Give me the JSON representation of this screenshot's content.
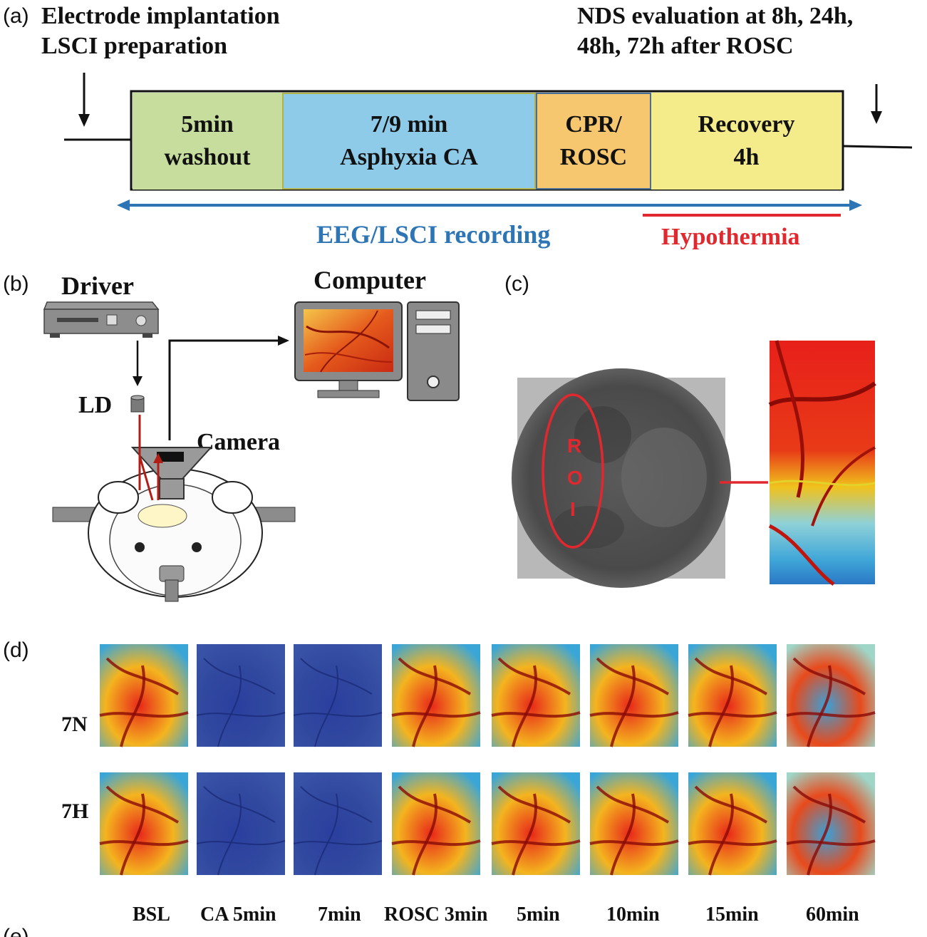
{
  "panel_labels": {
    "a": "(a)",
    "b": "(b)",
    "c": "(c)",
    "d": "(d)",
    "e": "(e)"
  },
  "timeline": {
    "top_left": [
      "Electrode implantation",
      "LSCI preparation"
    ],
    "top_right": [
      "NDS evaluation at 8h, 24h,",
      "48h, 72h after ROSC"
    ],
    "segments": [
      {
        "line1": "5min",
        "line2": "washout",
        "color": "#c6dd9e"
      },
      {
        "line1": "7/9 min",
        "line2": "Asphyxia CA",
        "color": "#8ecbe8"
      },
      {
        "line1": "CPR/",
        "line2": "ROSC",
        "color": "#f6c76e"
      },
      {
        "line1": "Recovery",
        "line2": "4h",
        "color": "#f4ec8a"
      }
    ],
    "recording_label": "EEG/LSCI recording",
    "recording_color": "#2e75b6",
    "hypothermia_label": "Hypothermia",
    "hypothermia_color": "#e0282e"
  },
  "setup": {
    "driver_label": "Driver",
    "ld_label": "LD",
    "camera_label": "Camera",
    "computer_label": "Computer"
  },
  "roi": {
    "letters": [
      "R",
      "O",
      "I"
    ],
    "color": "#e0282e"
  },
  "lsci_series": {
    "rows": [
      "7N",
      "7H"
    ],
    "timepoints": [
      "BSL",
      "CA 5min",
      "7min",
      "ROSC 3min",
      "5min",
      "10min",
      "15min",
      "60min"
    ],
    "perfusion_level": {
      "7N": [
        0.75,
        0.05,
        0.08,
        0.7,
        0.82,
        0.85,
        0.8,
        0.45
      ],
      "7H": [
        0.78,
        0.05,
        0.12,
        0.78,
        0.88,
        0.92,
        0.9,
        0.5
      ]
    }
  }
}
